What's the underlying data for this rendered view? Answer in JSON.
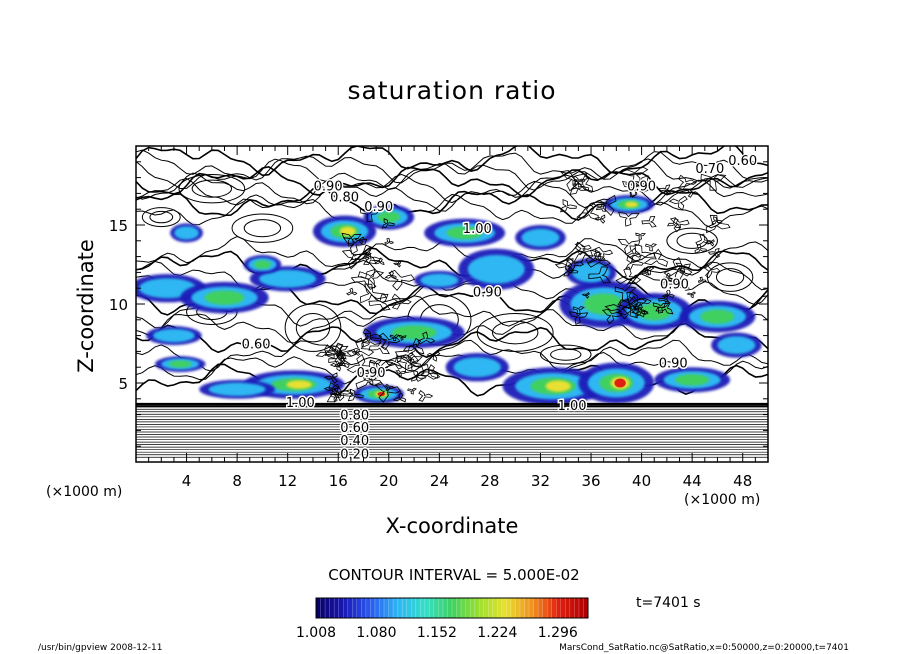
{
  "chart_data": {
    "type": "heatmap",
    "title": "saturation ratio",
    "xlabel": "X-coordinate",
    "ylabel": "Z-coordinate",
    "x_unit": "(×1000 m)",
    "z_unit": "(×1000 m)",
    "xlim": [
      0,
      50
    ],
    "ylim": [
      0,
      20
    ],
    "x_ticks": [
      4,
      8,
      12,
      16,
      20,
      24,
      28,
      32,
      36,
      40,
      44,
      48
    ],
    "y_ticks": [
      5,
      10,
      15
    ],
    "contour_interval": "CONTOUR INTERVAL = 5.000E-02",
    "contour_labels": [
      {
        "text": "0.60",
        "x": 48,
        "z": 19.1
      },
      {
        "text": "0.70",
        "x": 45.4,
        "z": 18.6
      },
      {
        "text": "0.90",
        "x": 15.2,
        "z": 17.5
      },
      {
        "text": "0.80",
        "x": 16.5,
        "z": 16.8
      },
      {
        "text": "0.90",
        "x": 19.2,
        "z": 16.2
      },
      {
        "text": "0.90",
        "x": 40.0,
        "z": 17.5
      },
      {
        "text": "1.00",
        "x": 27,
        "z": 14.8
      },
      {
        "text": "0.90",
        "x": 27.8,
        "z": 10.8
      },
      {
        "text": "0.90",
        "x": 42.6,
        "z": 11.3
      },
      {
        "text": "0.60",
        "x": 9.5,
        "z": 7.5
      },
      {
        "text": "0.90",
        "x": 18.6,
        "z": 5.7
      },
      {
        "text": "1.00",
        "x": 13.0,
        "z": 3.8
      },
      {
        "text": "1.00",
        "x": 34.5,
        "z": 3.6
      },
      {
        "text": "0.90",
        "x": 42.5,
        "z": 6.3
      },
      {
        "text": "0.80",
        "x": 17.3,
        "z": 3.0
      },
      {
        "text": "0.60",
        "x": 17.3,
        "z": 2.2
      },
      {
        "text": "0.40",
        "x": 17.3,
        "z": 1.4
      },
      {
        "text": "0.20",
        "x": 17.3,
        "z": 0.55
      }
    ],
    "colorbar": {
      "ticks": [
        "1.008",
        "1.080",
        "1.152",
        "1.224",
        "1.296"
      ],
      "min": 1.008,
      "max": 1.332,
      "colors": [
        "#08006a",
        "#1b1bb8",
        "#2a5ff0",
        "#2fb7f2",
        "#34e0c8",
        "#40d060",
        "#9be030",
        "#e8e030",
        "#f09020",
        "#e02010",
        "#b00000"
      ]
    },
    "time": "t=7401 s"
  },
  "footer": {
    "left": "/usr/bin/gpview   2008-12-11",
    "right": "MarsCond_SatRatio.nc@SatRatio,x=0:50000,z=0:20000,t=7401"
  }
}
